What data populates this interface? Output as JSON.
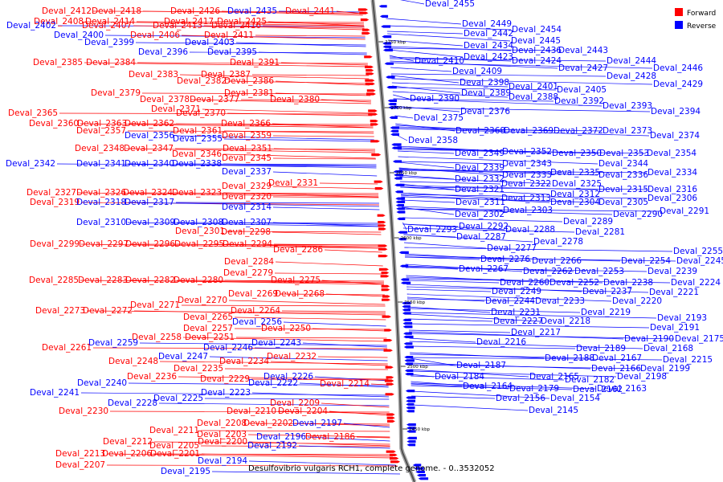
{
  "caption": "Desulfovibrio vulgaris RCH1, complete genome. - 0..3532052",
  "legend": [
    {
      "label": "Forward",
      "color": "#ff0000"
    },
    {
      "label": "Reverse",
      "color": "#0000ff"
    }
  ],
  "colors": {
    "forward": "#ff0000",
    "reverse": "#0000ff",
    "backbone": "#808080"
  },
  "ticks": [
    "2750 kbp",
    "2700 kbp",
    "2650 kbp",
    "2600 kbp",
    "2550 kbp",
    "2500 kbp",
    "2450 kbp"
  ],
  "left_labels": [
    {
      "text": "Deval_2412",
      "s": "f"
    },
    {
      "text": "Deval_2418",
      "s": "f"
    },
    {
      "text": "Deval_2426",
      "s": "f"
    },
    {
      "text": "Deval_2435",
      "s": "r"
    },
    {
      "text": "Deval_2441",
      "s": "f"
    },
    {
      "text": "Deval_2408",
      "s": "f"
    },
    {
      "text": "Deval_2414",
      "s": "f"
    },
    {
      "text": "Deval_2417",
      "s": "f"
    },
    {
      "text": "Deval_2425",
      "s": "f"
    },
    {
      "text": "Deval_2402",
      "s": "r"
    },
    {
      "text": "Deval_2407",
      "s": "f"
    },
    {
      "text": "Deval_2413",
      "s": "f"
    },
    {
      "text": "Deval_2416",
      "s": "f"
    },
    {
      "text": "Deval_2400",
      "s": "r"
    },
    {
      "text": "Deval_2406",
      "s": "f"
    },
    {
      "text": "Deval_2411",
      "s": "f"
    },
    {
      "text": "Deval_2399",
      "s": "r"
    },
    {
      "text": "Deval_2403",
      "s": "r"
    },
    {
      "text": "Deval_2396",
      "s": "r"
    },
    {
      "text": "Deval_2395",
      "s": "r"
    },
    {
      "text": "Deval_2385",
      "s": "f"
    },
    {
      "text": "Deval_2384",
      "s": "f"
    },
    {
      "text": "Deval_2391",
      "s": "f"
    },
    {
      "text": "Deval_2383",
      "s": "f"
    },
    {
      "text": "Deval_2387",
      "s": "f"
    },
    {
      "text": "Deval_2382",
      "s": "f"
    },
    {
      "text": "Deval_2386",
      "s": "f"
    },
    {
      "text": "Deval_2379",
      "s": "f"
    },
    {
      "text": "Deval_2381",
      "s": "f"
    },
    {
      "text": "Deval_2378",
      "s": "f"
    },
    {
      "text": "Deval_2377",
      "s": "f"
    },
    {
      "text": "Deval_2380",
      "s": "f"
    },
    {
      "text": "Deval_2371",
      "s": "f"
    },
    {
      "text": "Deval_2365",
      "s": "f"
    },
    {
      "text": "Deval_2370",
      "s": "f"
    },
    {
      "text": "Deval_2360",
      "s": "f"
    },
    {
      "text": "Deval_2363",
      "s": "f"
    },
    {
      "text": "Deval_2362",
      "s": "f"
    },
    {
      "text": "Deval_2366",
      "s": "f"
    },
    {
      "text": "Deval_2357",
      "s": "f"
    },
    {
      "text": "Deval_2361",
      "s": "f"
    },
    {
      "text": "Deval_2356",
      "s": "r"
    },
    {
      "text": "Deval_2359",
      "s": "f"
    },
    {
      "text": "Deval_2355",
      "s": "r"
    },
    {
      "text": "Deval_2348",
      "s": "f"
    },
    {
      "text": "Deval_2347",
      "s": "f"
    },
    {
      "text": "Deval_2351",
      "s": "f"
    },
    {
      "text": "Deval_2346",
      "s": "f"
    },
    {
      "text": "Deval_2345",
      "s": "f"
    },
    {
      "text": "Deval_2342",
      "s": "r"
    },
    {
      "text": "Deval_2341",
      "s": "r"
    },
    {
      "text": "Deval_2340",
      "s": "r"
    },
    {
      "text": "Deval_2338",
      "s": "r"
    },
    {
      "text": "Deval_2337",
      "s": "r"
    },
    {
      "text": "Deval_2331",
      "s": "f"
    },
    {
      "text": "Deval_2329",
      "s": "f"
    },
    {
      "text": "Deval_2327",
      "s": "f"
    },
    {
      "text": "Deval_2326",
      "s": "f"
    },
    {
      "text": "Deval_2324",
      "s": "f"
    },
    {
      "text": "Deval_2323",
      "s": "f"
    },
    {
      "text": "Deval_2320",
      "s": "f"
    },
    {
      "text": "Deval_2319",
      "s": "f"
    },
    {
      "text": "Deval_2318",
      "s": "r"
    },
    {
      "text": "Deval_2317",
      "s": "r"
    },
    {
      "text": "Deval_2314",
      "s": "r"
    },
    {
      "text": "Deval_2310",
      "s": "r"
    },
    {
      "text": "Deval_2309",
      "s": "r"
    },
    {
      "text": "Deval_2308",
      "s": "r"
    },
    {
      "text": "Deval_2307",
      "s": "r"
    },
    {
      "text": "Deval_2301",
      "s": "f"
    },
    {
      "text": "Deval_2298",
      "s": "f"
    },
    {
      "text": "Deval_2299",
      "s": "f"
    },
    {
      "text": "Deval_2297",
      "s": "f"
    },
    {
      "text": "Deval_2296",
      "s": "f"
    },
    {
      "text": "Deval_2295",
      "s": "f"
    },
    {
      "text": "Deval_2294",
      "s": "f"
    },
    {
      "text": "Deval_2286",
      "s": "f"
    },
    {
      "text": "Deval_2284",
      "s": "f"
    },
    {
      "text": "Deval_2279",
      "s": "f"
    },
    {
      "text": "Deval_2285",
      "s": "f"
    },
    {
      "text": "Deval_2283",
      "s": "f"
    },
    {
      "text": "Deval_2282",
      "s": "f"
    },
    {
      "text": "Deval_2280",
      "s": "f"
    },
    {
      "text": "Deval_2275",
      "s": "f"
    },
    {
      "text": "Deval_2269",
      "s": "f"
    },
    {
      "text": "Deval_2268",
      "s": "f"
    },
    {
      "text": "Deval_2270",
      "s": "f"
    },
    {
      "text": "Deval_2271",
      "s": "f"
    },
    {
      "text": "Deval_2273",
      "s": "f"
    },
    {
      "text": "Deval_2272",
      "s": "f"
    },
    {
      "text": "Deval_2264",
      "s": "f"
    },
    {
      "text": "Deval_2265",
      "s": "f"
    },
    {
      "text": "Deval_2256",
      "s": "r"
    },
    {
      "text": "Deval_2257",
      "s": "f"
    },
    {
      "text": "Deval_2250",
      "s": "f"
    },
    {
      "text": "Deval_2258",
      "s": "f"
    },
    {
      "text": "Deval_2251",
      "s": "f"
    },
    {
      "text": "Deval_2259",
      "s": "r"
    },
    {
      "text": "Deval_2243",
      "s": "r"
    },
    {
      "text": "Deval_2261",
      "s": "f"
    },
    {
      "text": "Deval_2246",
      "s": "r"
    },
    {
      "text": "Deval_2247",
      "s": "r"
    },
    {
      "text": "Deval_2232",
      "s": "f"
    },
    {
      "text": "Deval_2248",
      "s": "f"
    },
    {
      "text": "Deval_2234",
      "s": "f"
    },
    {
      "text": "Deval_2235",
      "s": "f"
    },
    {
      "text": "Deval_2236",
      "s": "f"
    },
    {
      "text": "Deval_2226",
      "s": "r"
    },
    {
      "text": "Deval_2229",
      "s": "f"
    },
    {
      "text": "Deval_2240",
      "s": "r"
    },
    {
      "text": "Deval_2222",
      "s": "r"
    },
    {
      "text": "Deval_2214",
      "s": "f"
    },
    {
      "text": "Deval_2241",
      "s": "r"
    },
    {
      "text": "Deval_2223",
      "s": "r"
    },
    {
      "text": "Deval_2225",
      "s": "r"
    },
    {
      "text": "Deval_2228",
      "s": "r"
    },
    {
      "text": "Deval_2209",
      "s": "f"
    },
    {
      "text": "Deval_2230",
      "s": "f"
    },
    {
      "text": "Deval_2210",
      "s": "f"
    },
    {
      "text": "Deval_2204",
      "s": "f"
    },
    {
      "text": "Deval_2208",
      "s": "f"
    },
    {
      "text": "Deval_2202",
      "s": "f"
    },
    {
      "text": "Deval_2197",
      "s": "r"
    },
    {
      "text": "Deval_2211",
      "s": "f"
    },
    {
      "text": "Deval_2203",
      "s": "f"
    },
    {
      "text": "Deval_2196",
      "s": "r"
    },
    {
      "text": "Deval_2186",
      "s": "f"
    },
    {
      "text": "Deval_2212",
      "s": "f"
    },
    {
      "text": "Deval_2200",
      "s": "f"
    },
    {
      "text": "Deval_2205",
      "s": "f"
    },
    {
      "text": "Deval_2192",
      "s": "r"
    },
    {
      "text": "Deval_2213",
      "s": "f"
    },
    {
      "text": "Deval_2206",
      "s": "f"
    },
    {
      "text": "Deval_2201",
      "s": "f"
    },
    {
      "text": "Deval_2194",
      "s": "r"
    },
    {
      "text": "Deval_2207",
      "s": "f"
    },
    {
      "text": "Deval_2195",
      "s": "r"
    }
  ],
  "right_labels": [
    {
      "text": "Deval_2455",
      "s": "r"
    },
    {
      "text": "Deval_2449",
      "s": "r"
    },
    {
      "text": "Deval_2454",
      "s": "r"
    },
    {
      "text": "Deval_2442",
      "s": "r"
    },
    {
      "text": "Deval_2445",
      "s": "r"
    },
    {
      "text": "Deval_2434",
      "s": "r"
    },
    {
      "text": "Deval_2436",
      "s": "r"
    },
    {
      "text": "Deval_2443",
      "s": "r"
    },
    {
      "text": "Deval_2423",
      "s": "r"
    },
    {
      "text": "Deval_2410",
      "s": "r"
    },
    {
      "text": "Deval_2424",
      "s": "r"
    },
    {
      "text": "Deval_2444",
      "s": "r"
    },
    {
      "text": "Deval_2427",
      "s": "r"
    },
    {
      "text": "Deval_2446",
      "s": "r"
    },
    {
      "text": "Deval_2409",
      "s": "r"
    },
    {
      "text": "Deval_2428",
      "s": "r"
    },
    {
      "text": "Deval_2398",
      "s": "r"
    },
    {
      "text": "Deval_2429",
      "s": "r"
    },
    {
      "text": "Deval_2401",
      "s": "r"
    },
    {
      "text": "Deval_2405",
      "s": "r"
    },
    {
      "text": "Deval_2389",
      "s": "r"
    },
    {
      "text": "Deval_2388",
      "s": "r"
    },
    {
      "text": "Deval_2390",
      "s": "r"
    },
    {
      "text": "Deval_2392",
      "s": "r"
    },
    {
      "text": "Deval_2393",
      "s": "r"
    },
    {
      "text": "Deval_2376",
      "s": "r"
    },
    {
      "text": "Deval_2394",
      "s": "r"
    },
    {
      "text": "Deval_2375",
      "s": "r"
    },
    {
      "text": "Deval_2368",
      "s": "r"
    },
    {
      "text": "Deval_2369",
      "s": "r"
    },
    {
      "text": "Deval_2372",
      "s": "r"
    },
    {
      "text": "Deval_2373",
      "s": "r"
    },
    {
      "text": "Deval_2374",
      "s": "r"
    },
    {
      "text": "Deval_2358",
      "s": "r"
    },
    {
      "text": "Deval_2352",
      "s": "r"
    },
    {
      "text": "Deval_2349",
      "s": "r"
    },
    {
      "text": "Deval_2350",
      "s": "r"
    },
    {
      "text": "Deval_2353",
      "s": "r"
    },
    {
      "text": "Deval_2354",
      "s": "r"
    },
    {
      "text": "Deval_2343",
      "s": "r"
    },
    {
      "text": "Deval_2344",
      "s": "r"
    },
    {
      "text": "Deval_2339",
      "s": "r"
    },
    {
      "text": "Deval_2335",
      "s": "r"
    },
    {
      "text": "Deval_2334",
      "s": "r"
    },
    {
      "text": "Deval_2333",
      "s": "r"
    },
    {
      "text": "Deval_2336",
      "s": "r"
    },
    {
      "text": "Deval_2332",
      "s": "r"
    },
    {
      "text": "Deval_2322",
      "s": "r"
    },
    {
      "text": "Deval_2325",
      "s": "r"
    },
    {
      "text": "Deval_2321",
      "s": "r"
    },
    {
      "text": "Deval_2315",
      "s": "r"
    },
    {
      "text": "Deval_2316",
      "s": "r"
    },
    {
      "text": "Deval_2312",
      "s": "r"
    },
    {
      "text": "Deval_2313",
      "s": "r"
    },
    {
      "text": "Deval_2306",
      "s": "r"
    },
    {
      "text": "Deval_2311",
      "s": "r"
    },
    {
      "text": "Deval_2304",
      "s": "r"
    },
    {
      "text": "Deval_2305",
      "s": "r"
    },
    {
      "text": "Deval_2303",
      "s": "r"
    },
    {
      "text": "Deval_2291",
      "s": "r"
    },
    {
      "text": "Deval_2302",
      "s": "r"
    },
    {
      "text": "Deval_2290",
      "s": "r"
    },
    {
      "text": "Deval_2289",
      "s": "r"
    },
    {
      "text": "Deval_2292",
      "s": "r"
    },
    {
      "text": "Deval_2293",
      "s": "r"
    },
    {
      "text": "Deval_2288",
      "s": "r"
    },
    {
      "text": "Deval_2281",
      "s": "r"
    },
    {
      "text": "Deval_2287",
      "s": "r"
    },
    {
      "text": "Deval_2278",
      "s": "r"
    },
    {
      "text": "Deval_2277",
      "s": "r"
    },
    {
      "text": "Deval_2255",
      "s": "r"
    },
    {
      "text": "Deval_2276",
      "s": "r"
    },
    {
      "text": "Deval_2266",
      "s": "r"
    },
    {
      "text": "Deval_2254",
      "s": "r"
    },
    {
      "text": "Deval_2245",
      "s": "r"
    },
    {
      "text": "Deval_2267",
      "s": "r"
    },
    {
      "text": "Deval_2262",
      "s": "r"
    },
    {
      "text": "Deval_2253",
      "s": "r"
    },
    {
      "text": "Deval_2239",
      "s": "r"
    },
    {
      "text": "Deval_2260",
      "s": "r"
    },
    {
      "text": "Deval_2252",
      "s": "r"
    },
    {
      "text": "Deval_2238",
      "s": "r"
    },
    {
      "text": "Deval_2224",
      "s": "r"
    },
    {
      "text": "Deval_2249",
      "s": "r"
    },
    {
      "text": "Deval_2237",
      "s": "r"
    },
    {
      "text": "Deval_2221",
      "s": "r"
    },
    {
      "text": "Deval_2244",
      "s": "r"
    },
    {
      "text": "Deval_2233",
      "s": "r"
    },
    {
      "text": "Deval_2220",
      "s": "r"
    },
    {
      "text": "Deval_2231",
      "s": "r"
    },
    {
      "text": "Deval_2219",
      "s": "r"
    },
    {
      "text": "Deval_2227",
      "s": "r"
    },
    {
      "text": "Deval_2218",
      "s": "r"
    },
    {
      "text": "Deval_2193",
      "s": "r"
    },
    {
      "text": "Deval_2191",
      "s": "r"
    },
    {
      "text": "Deval_2217",
      "s": "r"
    },
    {
      "text": "Deval_2190",
      "s": "r"
    },
    {
      "text": "Deval_2175",
      "s": "r"
    },
    {
      "text": "Deval_2216",
      "s": "r"
    },
    {
      "text": "Deval_2189",
      "s": "r"
    },
    {
      "text": "Deval_2168",
      "s": "r"
    },
    {
      "text": "Deval_2188",
      "s": "r"
    },
    {
      "text": "Deval_2167",
      "s": "r"
    },
    {
      "text": "Deval_2215",
      "s": "r"
    },
    {
      "text": "Deval_2187",
      "s": "r"
    },
    {
      "text": "Deval_2166",
      "s": "r"
    },
    {
      "text": "Deval_2199",
      "s": "r"
    },
    {
      "text": "Deval_2184",
      "s": "r"
    },
    {
      "text": "Deval_2165",
      "s": "r"
    },
    {
      "text": "Deval_2198",
      "s": "r"
    },
    {
      "text": "Deval_2182",
      "s": "r"
    },
    {
      "text": "Deval_2164",
      "s": "r"
    },
    {
      "text": "Deval_2179",
      "s": "r"
    },
    {
      "text": "Deval_2163",
      "s": "r"
    },
    {
      "text": "Deval_2162",
      "s": "r"
    },
    {
      "text": "Deval_2156",
      "s": "r"
    },
    {
      "text": "Deval_2154",
      "s": "r"
    },
    {
      "text": "Deval_2145",
      "s": "r"
    }
  ]
}
